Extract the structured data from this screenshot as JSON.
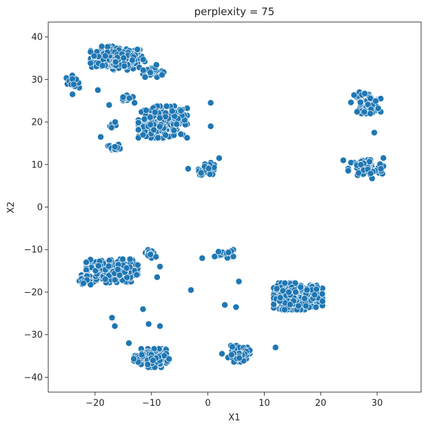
{
  "chart_data": {
    "type": "scatter",
    "title": "perplexity = 75",
    "xlabel": "X1",
    "ylabel": "X2",
    "xlim": [
      -28.3,
      37.8
    ],
    "ylim": [
      -43.5,
      43.5
    ],
    "xticks": [
      -20,
      -10,
      0,
      10,
      20,
      30
    ],
    "yticks": [
      -40,
      -30,
      -20,
      -10,
      0,
      10,
      20,
      30,
      40
    ],
    "xtick_labels": [
      "−20",
      "−10",
      "0",
      "10",
      "20",
      "30"
    ],
    "ytick_labels": [
      "−40",
      "−30",
      "−20",
      "−10",
      "0",
      "10",
      "20",
      "30",
      "40"
    ],
    "grid": false,
    "marker_color": "#1f77b4",
    "marker_edge_color": "#ffffff",
    "clusters": [
      {
        "center": [
          -16,
          35
        ],
        "spread": [
          4.0,
          2.3
        ],
        "count": 170
      },
      {
        "center": [
          -10,
          32
        ],
        "spread": [
          1.8,
          1.2
        ],
        "count": 25
      },
      {
        "center": [
          -24,
          29.5
        ],
        "spread": [
          1.0,
          1.2
        ],
        "count": 20
      },
      {
        "center": [
          -8,
          20
        ],
        "spread": [
          3.6,
          3.1
        ],
        "count": 230
      },
      {
        "center": [
          -14.5,
          25.5
        ],
        "spread": [
          1.0,
          1.0
        ],
        "count": 10
      },
      {
        "center": [
          -16.5,
          19.5
        ],
        "spread": [
          0.9,
          0.8
        ],
        "count": 8
      },
      {
        "center": [
          -16.5,
          14
        ],
        "spread": [
          1.0,
          0.6
        ],
        "count": 15
      },
      {
        "center": [
          0,
          9
        ],
        "spread": [
          1.4,
          1.2
        ],
        "count": 30
      },
      {
        "center": [
          28,
          24.5
        ],
        "spread": [
          2.2,
          2.1
        ],
        "count": 55
      },
      {
        "center": [
          28,
          9
        ],
        "spread": [
          2.6,
          2.1
        ],
        "count": 70
      },
      {
        "center": [
          -17,
          -15
        ],
        "spread": [
          3.8,
          2.3
        ],
        "count": 240
      },
      {
        "center": [
          -22,
          -17.5
        ],
        "spread": [
          1.0,
          1.3
        ],
        "count": 20
      },
      {
        "center": [
          -10,
          -11
        ],
        "spread": [
          1.2,
          1.0
        ],
        "count": 15
      },
      {
        "center": [
          3,
          -11
        ],
        "spread": [
          1.5,
          0.8
        ],
        "count": 20
      },
      {
        "center": [
          16,
          -21
        ],
        "spread": [
          3.6,
          2.6
        ],
        "count": 280
      },
      {
        "center": [
          -10,
          -35.5
        ],
        "spread": [
          2.6,
          1.8
        ],
        "count": 150
      },
      {
        "center": [
          5.5,
          -34.5
        ],
        "spread": [
          1.6,
          1.6
        ],
        "count": 50
      }
    ],
    "outliers": [
      [
        -24,
        26.5
      ],
      [
        -19.5,
        27.5
      ],
      [
        -17.5,
        24
      ],
      [
        -13,
        24.5
      ],
      [
        0.5,
        24.5
      ],
      [
        0.5,
        19
      ],
      [
        -11.5,
        17
      ],
      [
        -19,
        16.5
      ],
      [
        2,
        11.5
      ],
      [
        -3.5,
        9
      ],
      [
        29.5,
        17.5
      ],
      [
        24,
        11
      ],
      [
        -11.5,
        -24
      ],
      [
        -17,
        -26
      ],
      [
        -16.5,
        -28
      ],
      [
        -10.5,
        -27.5
      ],
      [
        -8.5,
        -28
      ],
      [
        -3,
        -19.5
      ],
      [
        -1,
        -12
      ],
      [
        5.5,
        -17.5
      ],
      [
        3,
        -23
      ],
      [
        5,
        -23.5
      ],
      [
        12,
        -33
      ],
      [
        2.5,
        -34.5
      ],
      [
        -14,
        -32
      ],
      [
        -9,
        -16.5
      ],
      [
        -8.5,
        -14
      ]
    ]
  }
}
